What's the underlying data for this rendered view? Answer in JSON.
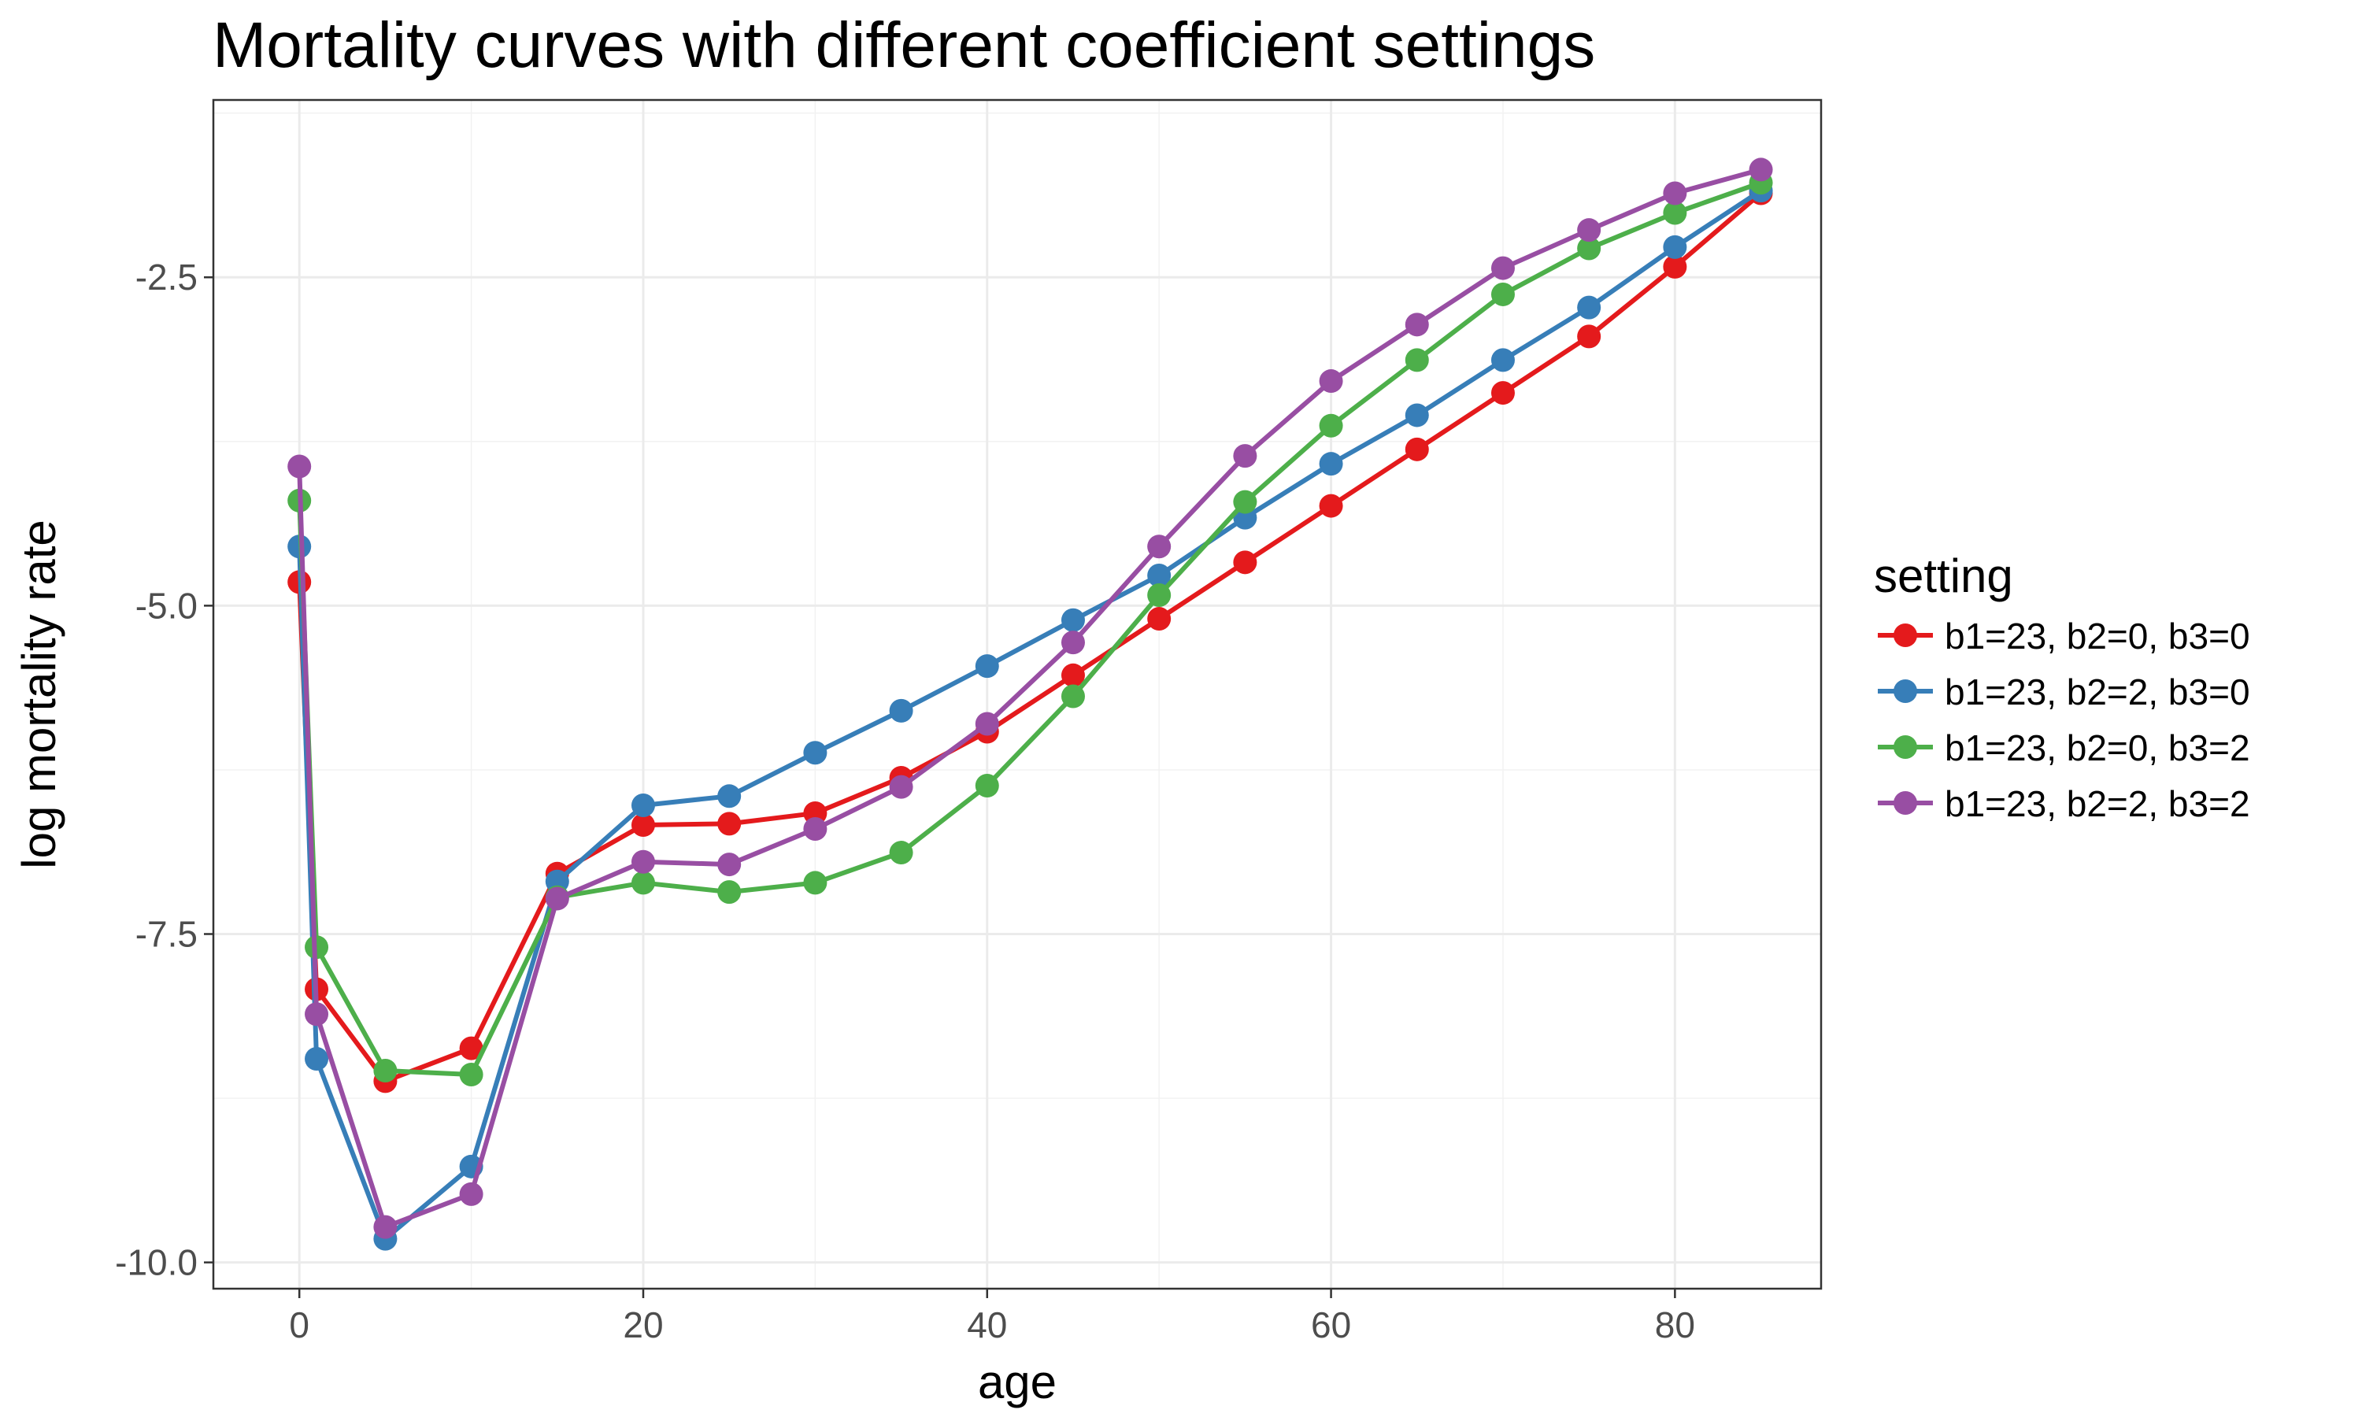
{
  "chart_data": {
    "type": "line",
    "title": "Mortality curves with different coefficient settings",
    "xlabel": "age",
    "ylabel": "log mortality rate",
    "xlim": [
      -5,
      88.5
    ],
    "ylim": [
      -10.2,
      -1.15
    ],
    "x_ticks": [
      0,
      20,
      40,
      60,
      80
    ],
    "x_tick_labels": [
      "0",
      "20",
      "40",
      "60",
      "80"
    ],
    "y_ticks": [
      -10.0,
      -7.5,
      -5.0,
      -2.5
    ],
    "y_tick_labels": [
      "-10.0",
      "-7.5",
      "-5.0",
      "-2.5"
    ],
    "grid": true,
    "legend": {
      "title": "setting",
      "position": "right"
    },
    "x": [
      0,
      1,
      5,
      10,
      15,
      20,
      25,
      30,
      35,
      40,
      45,
      50,
      55,
      60,
      65,
      70,
      75,
      80,
      85
    ],
    "series": [
      {
        "name": "b1=23, b2=0, b3=0",
        "color": "#E41A1C",
        "values": [
          -4.82,
          -7.92,
          -8.62,
          -8.37,
          -7.04,
          -6.67,
          -6.66,
          -6.58,
          -6.31,
          -5.96,
          -5.53,
          -5.1,
          -4.67,
          -4.24,
          -3.81,
          -3.38,
          -2.95,
          -2.42,
          -1.86
        ]
      },
      {
        "name": "b1=23, b2=2, b3=0",
        "color": "#377EB8",
        "values": [
          -4.55,
          -8.45,
          -9.82,
          -9.27,
          -7.1,
          -6.52,
          -6.45,
          -6.12,
          -5.8,
          -5.46,
          -5.11,
          -4.77,
          -4.33,
          -3.92,
          -3.55,
          -3.13,
          -2.73,
          -2.27,
          -1.84
        ]
      },
      {
        "name": "b1=23, b2=0, b3=2",
        "color": "#4DAF4A",
        "values": [
          -4.2,
          -7.6,
          -8.54,
          -8.57,
          -7.22,
          -7.11,
          -7.18,
          -7.11,
          -6.88,
          -6.37,
          -5.69,
          -4.92,
          -4.21,
          -3.63,
          -3.13,
          -2.63,
          -2.28,
          -2.01,
          -1.78
        ]
      },
      {
        "name": "b1=23, b2=2, b3=2",
        "color": "#984EA3",
        "values": [
          -3.94,
          -8.11,
          -9.73,
          -9.48,
          -7.23,
          -6.95,
          -6.97,
          -6.7,
          -6.38,
          -5.9,
          -5.28,
          -4.55,
          -3.86,
          -3.29,
          -2.86,
          -2.43,
          -2.14,
          -1.86,
          -1.68
        ]
      }
    ]
  }
}
